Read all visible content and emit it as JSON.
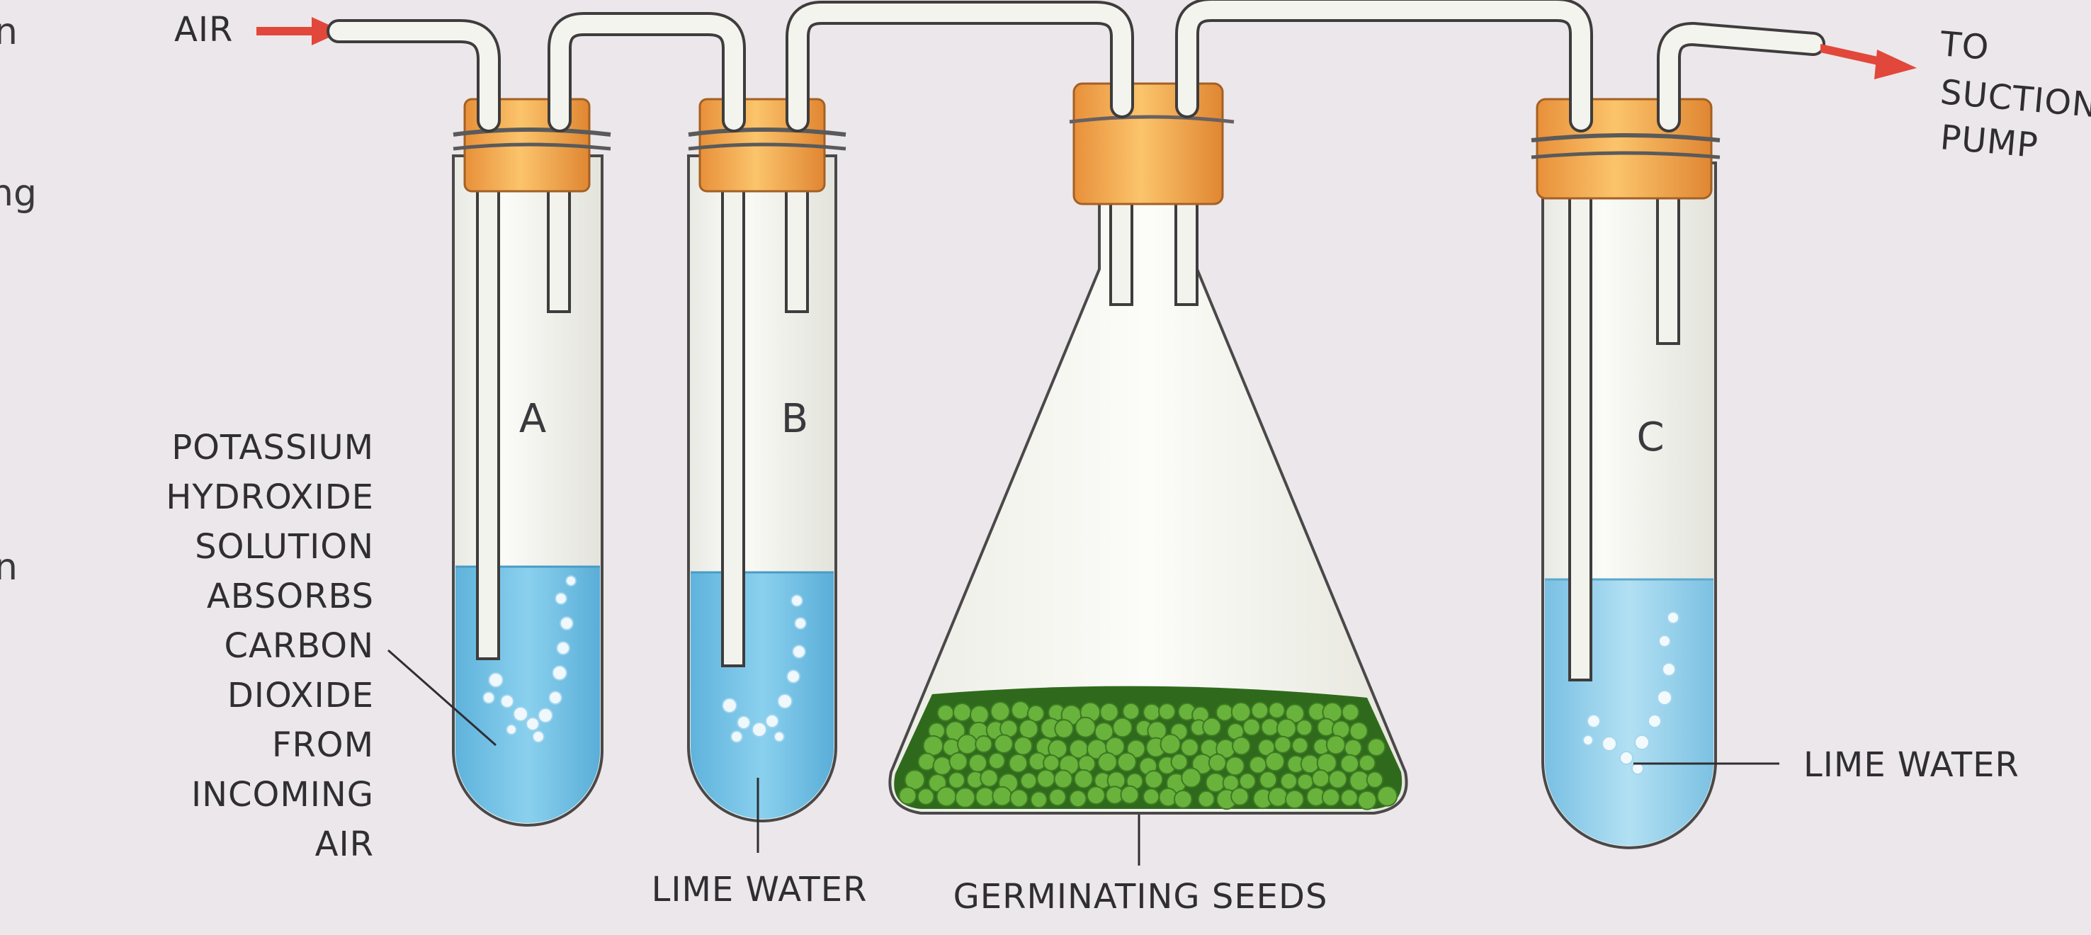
{
  "labels": {
    "air": "AIR",
    "to_suction_pump": [
      "TO",
      "SUCTION",
      "PUMP"
    ],
    "potassium_hydroxide": [
      "POTASSIUM",
      "HYDROXIDE",
      "SOLUTION",
      "ABSORBS",
      "CARBON",
      "DIOXIDE",
      "FROM",
      "INCOMING",
      "AIR"
    ],
    "lime_water_b": "LIME WATER",
    "germinating_seeds": "GERMINATING SEEDS",
    "lime_water_c": "LIME WATER"
  },
  "vessels": {
    "tube_a": "A",
    "tube_b": "B",
    "tube_c": "C"
  },
  "edge_fragments": [
    "n",
    "ng",
    "n"
  ],
  "colors": {
    "background": "#ece7ea",
    "liquid": "#7ec6e6",
    "stopper": "#f2a447",
    "arrow": "#e2473b",
    "seeds": "#5fa33a"
  }
}
